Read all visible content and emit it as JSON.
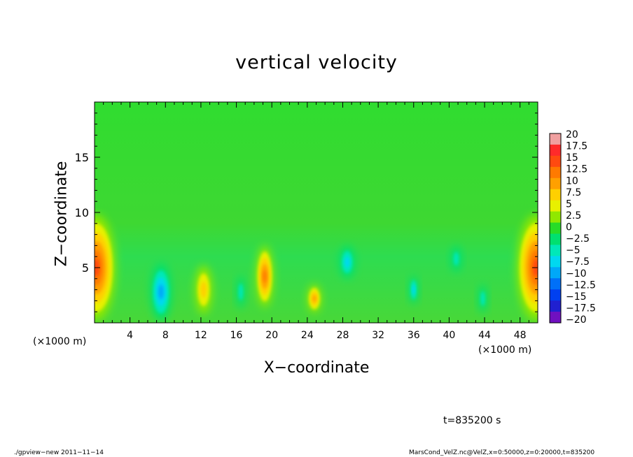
{
  "chart_data": {
    "type": "heatmap",
    "title": "vertical velocity",
    "xlabel": "X−coordinate",
    "ylabel": "Z−coordinate",
    "x_unit_left": "(×1000 m)",
    "x_unit_right": "(×1000 m)",
    "xlim": [
      0,
      50
    ],
    "ylim": [
      0,
      20
    ],
    "x_ticks": [
      4,
      8,
      12,
      16,
      20,
      24,
      28,
      32,
      36,
      40,
      44,
      48
    ],
    "y_ticks": [
      5,
      10,
      15
    ],
    "colorbar": {
      "labels": [
        "20",
        "17.5",
        "15",
        "12.5",
        "10",
        "7.5",
        "5",
        "2.5",
        "0",
        "−2.5",
        "−5",
        "−7.5",
        "−10",
        "−12.5",
        "−15",
        "−17.5",
        "−20"
      ],
      "levels": [
        20,
        17.5,
        15,
        12.5,
        10,
        7.5,
        5,
        2.5,
        0,
        -2.5,
        -5,
        -7.5,
        -10,
        -12.5,
        -15,
        -17.5,
        -20
      ],
      "colors": [
        "#f0a0a0",
        "#ff2a2a",
        "#ff4a10",
        "#ff7a00",
        "#ffa000",
        "#ffd000",
        "#e8f000",
        "#90e800",
        "#28dc28",
        "#00e070",
        "#00e8b8",
        "#00d8f0",
        "#00a8f8",
        "#0070f8",
        "#0040f0",
        "#2020d0",
        "#7010c0"
      ]
    },
    "features": [
      {
        "x": 0.2,
        "z": 5.0,
        "rx": 2.2,
        "rz": 4.8,
        "value": 16
      },
      {
        "x": 49.8,
        "z": 5.0,
        "rx": 2.2,
        "rz": 4.8,
        "value": 16
      },
      {
        "x": 7.5,
        "z": 2.8,
        "rx": 1.2,
        "rz": 2.6,
        "value": -10
      },
      {
        "x": 12.3,
        "z": 3.0,
        "rx": 1.0,
        "rz": 2.2,
        "value": 8
      },
      {
        "x": 16.5,
        "z": 2.8,
        "rx": 0.5,
        "rz": 1.5,
        "value": -6
      },
      {
        "x": 19.2,
        "z": 4.2,
        "rx": 1.0,
        "rz": 2.8,
        "value": 12
      },
      {
        "x": 24.8,
        "z": 2.2,
        "rx": 0.8,
        "rz": 1.3,
        "value": 10
      },
      {
        "x": 28.5,
        "z": 5.5,
        "rx": 0.9,
        "rz": 1.5,
        "value": -8
      },
      {
        "x": 36.0,
        "z": 3.0,
        "rx": 0.5,
        "rz": 1.3,
        "value": -8
      },
      {
        "x": 40.8,
        "z": 5.8,
        "rx": 0.6,
        "rz": 1.2,
        "value": -6
      },
      {
        "x": 43.8,
        "z": 2.2,
        "rx": 0.5,
        "rz": 1.3,
        "value": -6
      }
    ]
  },
  "time_label": "t=835200 s",
  "footer_left": "./gpview−new   2011−11−14",
  "footer_right": "MarsCond_VelZ.nc@VelZ,x=0:50000,z=0:20000,t=835200"
}
